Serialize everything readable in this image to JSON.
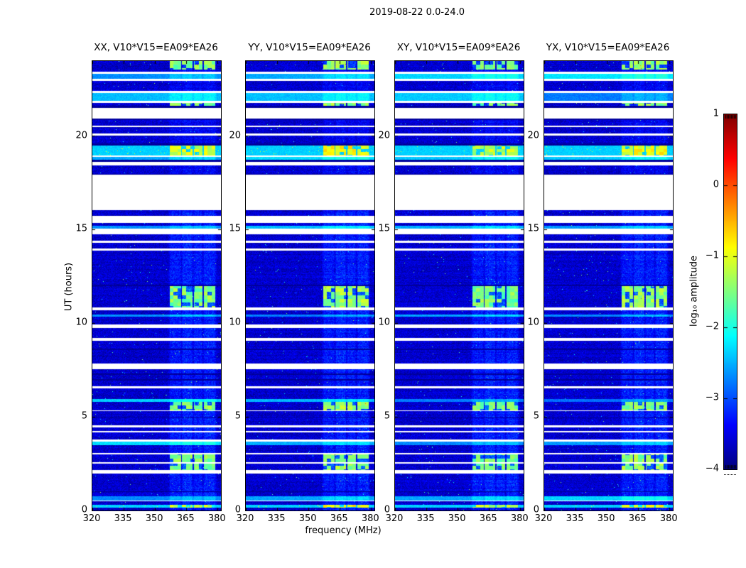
{
  "figure": {
    "title": "2019-08-22 0.0-24.0",
    "background": "#ffffff"
  },
  "chart_data": {
    "type": "heatmap",
    "title": "2019-08-22 0.0-24.0",
    "xlabel": "frequency (MHz)",
    "ylabel": "UT (hours)",
    "x_tick_labels": [
      "320",
      "335",
      "350",
      "365",
      "380"
    ],
    "x_tick_values": [
      320,
      335,
      350,
      365,
      380
    ],
    "x_range": [
      320,
      381.6
    ],
    "y_tick_labels": [
      "0",
      "5",
      "10",
      "15",
      "20"
    ],
    "y_tick_values": [
      0,
      5,
      10,
      15,
      20
    ],
    "y_range": [
      0,
      24
    ],
    "panels": [
      {
        "label": "XX",
        "title": "XX, V10*V15=EA09*EA26",
        "seed": 11,
        "blob_offset": 0.1
      },
      {
        "label": "YY",
        "title": "YY, V10*V15=EA09*EA26",
        "seed": 23,
        "blob_offset": 0.35
      },
      {
        "label": "XY",
        "title": "XY, V10*V15=EA09*EA26",
        "seed": 37,
        "blob_offset": 0.0
      },
      {
        "label": "YX",
        "title": "YX, V10*V15=EA09*EA26",
        "seed": 49,
        "blob_offset": 0.25
      }
    ],
    "colorbar": {
      "label": "log₁₀ amplitude",
      "tick_labels": [
        "1",
        "0",
        "−1",
        "−2",
        "−3",
        "−4"
      ],
      "tick_values": [
        1,
        0,
        -1,
        -2,
        -3,
        -4
      ],
      "range": [
        -4,
        1
      ],
      "colormap": "jet"
    },
    "rfi_band_mhz": [
      [
        357.5,
        362,
        0.8
      ],
      [
        363.5,
        367.5,
        1.0
      ],
      [
        369.0,
        372.2,
        0.85
      ],
      [
        373.8,
        378.5,
        0.95
      ]
    ],
    "levels": {
      "noise": -3.62,
      "noise_spread": 0.5,
      "dark": -3.95,
      "bright_base": -2.85,
      "bright_var": 0.6,
      "blob": -1.85,
      "band_boost_low": 0.55,
      "band_boost_high": 0.3
    },
    "time_segments": [
      [
        24.0,
        23.55,
        "noise_blobs"
      ],
      [
        23.55,
        23.42,
        "noise"
      ],
      [
        23.42,
        23.33,
        "white"
      ],
      [
        23.33,
        23.05,
        "bright"
      ],
      [
        23.05,
        22.95,
        "white"
      ],
      [
        22.95,
        22.42,
        "noise"
      ],
      [
        22.42,
        22.3,
        "white"
      ],
      [
        22.3,
        21.86,
        "bright"
      ],
      [
        21.86,
        21.76,
        "white"
      ],
      [
        21.76,
        21.62,
        "noise_blobs"
      ],
      [
        21.62,
        21.5,
        "dark"
      ],
      [
        21.5,
        20.92,
        "white"
      ],
      [
        20.92,
        20.84,
        "dark"
      ],
      [
        20.84,
        20.56,
        "noise"
      ],
      [
        20.56,
        20.47,
        "white"
      ],
      [
        20.47,
        20.12,
        "noise"
      ],
      [
        20.12,
        20.02,
        "white"
      ],
      [
        20.02,
        19.62,
        "noise"
      ],
      [
        19.62,
        19.48,
        "dark"
      ],
      [
        19.48,
        18.96,
        "bright_blobs"
      ],
      [
        18.96,
        18.9,
        "white"
      ],
      [
        18.9,
        18.72,
        "bright"
      ],
      [
        18.72,
        18.62,
        "dark"
      ],
      [
        18.62,
        18.42,
        "white"
      ],
      [
        18.42,
        17.98,
        "noise"
      ],
      [
        17.98,
        17.92,
        "dark"
      ],
      [
        17.92,
        16.05,
        "white"
      ],
      [
        16.05,
        15.72,
        "noise"
      ],
      [
        15.72,
        15.36,
        "white"
      ],
      [
        15.36,
        15.22,
        "noise"
      ],
      [
        15.22,
        15.06,
        "bright"
      ],
      [
        15.06,
        14.74,
        "white"
      ],
      [
        14.74,
        14.42,
        "noise"
      ],
      [
        14.42,
        14.3,
        "white"
      ],
      [
        14.3,
        14.0,
        "noise"
      ],
      [
        14.0,
        13.88,
        "white"
      ],
      [
        13.88,
        12.04,
        "noise"
      ],
      [
        12.04,
        11.97,
        "dark"
      ],
      [
        11.97,
        10.84,
        "noise_blobs"
      ],
      [
        10.84,
        10.7,
        "white"
      ],
      [
        10.7,
        10.47,
        "noise"
      ],
      [
        10.47,
        10.34,
        "bright"
      ],
      [
        10.34,
        9.92,
        "noise"
      ],
      [
        9.92,
        9.74,
        "white"
      ],
      [
        9.74,
        9.2,
        "noise"
      ],
      [
        9.2,
        9.07,
        "white"
      ],
      [
        9.07,
        8.64,
        "noise"
      ],
      [
        8.64,
        8.58,
        "dark"
      ],
      [
        8.58,
        7.84,
        "noise"
      ],
      [
        7.84,
        7.56,
        "white"
      ],
      [
        7.56,
        7.32,
        "noise"
      ],
      [
        7.32,
        7.26,
        "dark"
      ],
      [
        7.26,
        7.0,
        "noise"
      ],
      [
        7.0,
        6.94,
        "dark"
      ],
      [
        6.94,
        6.62,
        "noise"
      ],
      [
        6.62,
        6.54,
        "white"
      ],
      [
        6.54,
        5.94,
        "noise"
      ],
      [
        5.94,
        5.8,
        "bright"
      ],
      [
        5.8,
        5.36,
        "noise_blobs"
      ],
      [
        5.36,
        5.29,
        "white"
      ],
      [
        5.29,
        4.98,
        "noise"
      ],
      [
        4.98,
        4.92,
        "dark"
      ],
      [
        4.92,
        4.54,
        "noise"
      ],
      [
        4.54,
        4.44,
        "white"
      ],
      [
        4.44,
        4.24,
        "noise"
      ],
      [
        4.24,
        4.17,
        "white"
      ],
      [
        4.17,
        3.78,
        "noise"
      ],
      [
        3.78,
        3.68,
        "white"
      ],
      [
        3.68,
        3.47,
        "bright"
      ],
      [
        3.47,
        3.08,
        "noise"
      ],
      [
        3.08,
        2.98,
        "white"
      ],
      [
        2.98,
        2.58,
        "noise_blobs"
      ],
      [
        2.58,
        2.52,
        "white"
      ],
      [
        2.52,
        2.17,
        "noise_blobs"
      ],
      [
        2.17,
        1.97,
        "white"
      ],
      [
        1.97,
        1.04,
        "noise"
      ],
      [
        1.04,
        0.98,
        "dark"
      ],
      [
        0.98,
        0.76,
        "noise"
      ],
      [
        0.76,
        0.54,
        "bright"
      ],
      [
        0.54,
        0.48,
        "white"
      ],
      [
        0.48,
        0.32,
        "noise"
      ],
      [
        0.32,
        0.16,
        "bright_blobs"
      ],
      [
        0.16,
        0.0,
        "noise"
      ]
    ]
  }
}
